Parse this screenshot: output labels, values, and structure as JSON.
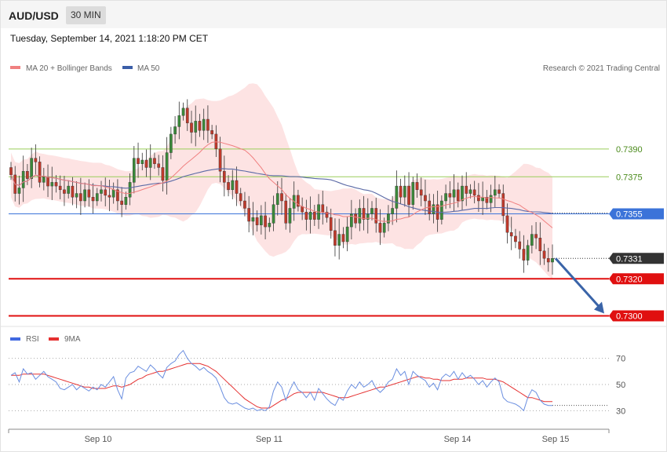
{
  "header": {
    "symbol": "AUD/USD",
    "timeframe": "30 MIN",
    "timestamp": "Tuesday, September 14, 2021 1:18:20 PM CET",
    "copyright": "Research © 2021 Trading Central"
  },
  "colors": {
    "bull": "#3a8a3a",
    "bear": "#c0392b",
    "ma20": "#f08080",
    "band_fill": "#fde0e0",
    "ma50": "#5b6aa6",
    "resistance": "#9acd5a",
    "pivot": "#3b73d9",
    "support": "#e01010",
    "rsi": "#6a8ee0",
    "rsi_ma": "#e53030",
    "arrow": "#3a64a8"
  },
  "chart_data": [
    {
      "type": "candlestick",
      "title": "AUD/USD",
      "legend": [
        {
          "name": "MA 20 + Bollinger Bands",
          "color": "#f08080"
        },
        {
          "name": "MA 50",
          "color": "#3b5ea8"
        }
      ],
      "x_tick_labels": [
        "Sep 10",
        "Sep 11",
        "Sep 14",
        "Sep 15"
      ],
      "ylim": [
        0.7296,
        0.7428
      ],
      "levels": [
        {
          "value": 0.739,
          "label": "0.7390",
          "kind": "resistance"
        },
        {
          "value": 0.7375,
          "label": "0.7375",
          "kind": "resistance"
        },
        {
          "value": 0.7355,
          "label": "0.7355",
          "kind": "pivot"
        },
        {
          "value": 0.7331,
          "label": "0.7331",
          "kind": "last"
        },
        {
          "value": 0.732,
          "label": "0.7320",
          "kind": "support"
        },
        {
          "value": 0.73,
          "label": "0.7300",
          "kind": "support"
        }
      ],
      "arrow": {
        "from": 0.7331,
        "to": 0.73
      },
      "closes": [
        0.7376,
        0.7366,
        0.7369,
        0.7378,
        0.7374,
        0.7385,
        0.7383,
        0.7372,
        0.7375,
        0.737,
        0.7372,
        0.737,
        0.7368,
        0.7366,
        0.737,
        0.7364,
        0.7366,
        0.7362,
        0.7368,
        0.7364,
        0.7362,
        0.7366,
        0.7368,
        0.7365,
        0.7364,
        0.7368,
        0.7362,
        0.736,
        0.7364,
        0.7372,
        0.7385,
        0.7382,
        0.7384,
        0.738,
        0.7385,
        0.7382,
        0.738,
        0.7373,
        0.7388,
        0.7398,
        0.7402,
        0.7408,
        0.7412,
        0.7404,
        0.7399,
        0.7405,
        0.74,
        0.7406,
        0.74,
        0.7398,
        0.739,
        0.7378,
        0.7372,
        0.7368,
        0.7373,
        0.7366,
        0.7362,
        0.7358,
        0.7351,
        0.7353,
        0.7349,
        0.7354,
        0.7348,
        0.735,
        0.736,
        0.7366,
        0.7362,
        0.735,
        0.7358,
        0.7365,
        0.7359,
        0.7356,
        0.7352,
        0.7356,
        0.7352,
        0.736,
        0.7356,
        0.7353,
        0.7346,
        0.7338,
        0.7344,
        0.734,
        0.7348,
        0.7355,
        0.735,
        0.7358,
        0.7352,
        0.7355,
        0.7358,
        0.735,
        0.7345,
        0.735,
        0.7355,
        0.7358,
        0.737,
        0.7364,
        0.737,
        0.736,
        0.7372,
        0.7368,
        0.7365,
        0.7362,
        0.7355,
        0.736,
        0.7352,
        0.7362,
        0.7366,
        0.7364,
        0.7368,
        0.7362,
        0.737,
        0.7366,
        0.7368,
        0.7365,
        0.7362,
        0.7364,
        0.7361,
        0.7365,
        0.7368,
        0.7366,
        0.7354,
        0.7345,
        0.7343,
        0.734,
        0.7336,
        0.733,
        0.7338,
        0.7344,
        0.7342,
        0.7335,
        0.7331,
        0.7329,
        0.7331
      ]
    },
    {
      "type": "line",
      "title": "RSI",
      "legend": [
        {
          "name": "RSI",
          "color": "#4169e1"
        },
        {
          "name": "9MA",
          "color": "#e53030"
        }
      ],
      "ylim": [
        20,
        80
      ],
      "y_ticks": [
        70,
        50,
        30
      ],
      "series": [
        {
          "name": "RSI",
          "values": [
            57,
            59,
            52,
            62,
            58,
            59,
            54,
            57,
            60,
            56,
            54,
            52,
            47,
            46,
            48,
            50,
            46,
            49,
            47,
            45,
            48,
            46,
            50,
            48,
            52,
            56,
            46,
            39,
            55,
            59,
            60,
            64,
            62,
            60,
            65,
            62,
            58,
            55,
            63,
            66,
            68,
            73,
            76,
            70,
            66,
            64,
            61,
            63,
            60,
            58,
            55,
            48,
            40,
            36,
            35,
            36,
            34,
            32,
            31,
            32,
            30,
            31,
            30,
            33,
            45,
            52,
            48,
            38,
            46,
            52,
            46,
            44,
            40,
            44,
            38,
            47,
            43,
            39,
            36,
            34,
            40,
            38,
            45,
            50,
            47,
            52,
            48,
            50,
            53,
            47,
            44,
            47,
            52,
            54,
            62,
            57,
            60,
            50,
            60,
            57,
            55,
            53,
            48,
            51,
            46,
            55,
            58,
            56,
            60,
            54,
            59,
            55,
            57,
            54,
            50,
            53,
            48,
            52,
            55,
            52,
            40,
            37,
            36,
            35,
            33,
            30,
            40,
            46,
            44,
            38,
            35,
            34,
            34
          ]
        },
        {
          "name": "9MA",
          "values": [
            57,
            57,
            57,
            58,
            58,
            58,
            58,
            58,
            58,
            57,
            56,
            55,
            54,
            53,
            52,
            51,
            50,
            49,
            48,
            48,
            47,
            47,
            47,
            47,
            48,
            49,
            49,
            48,
            49,
            50,
            52,
            54,
            55,
            57,
            58,
            59,
            60,
            60,
            61,
            62,
            63,
            64,
            65,
            66,
            66,
            66,
            66,
            65,
            64,
            62,
            60,
            57,
            54,
            51,
            48,
            45,
            42,
            39,
            37,
            35,
            33,
            32,
            32,
            32,
            34,
            36,
            38,
            39,
            41,
            43,
            44,
            44,
            44,
            44,
            44,
            44,
            44,
            43,
            42,
            41,
            40,
            40,
            40,
            41,
            42,
            43,
            44,
            45,
            46,
            47,
            48,
            48,
            49,
            50,
            51,
            52,
            53,
            54,
            55,
            56,
            56,
            55,
            55,
            54,
            54,
            53,
            53,
            53,
            54,
            54,
            54,
            55,
            55,
            55,
            55,
            55,
            54,
            54,
            54,
            53,
            52,
            50,
            48,
            46,
            44,
            42,
            40,
            40,
            39,
            38,
            37,
            37,
            37
          ]
        }
      ]
    }
  ]
}
